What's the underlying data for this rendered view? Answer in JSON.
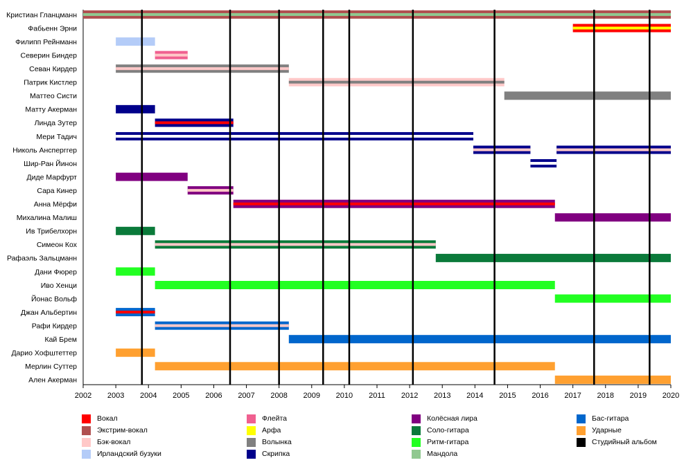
{
  "chart_data": {
    "type": "timeline",
    "x_ticks": [
      "2002",
      "2003",
      "2004",
      "2005",
      "2006",
      "2007",
      "2008",
      "2009",
      "2010",
      "2011",
      "2012",
      "2013",
      "2014",
      "2015",
      "2016",
      "2017",
      "2018",
      "2019",
      "2020"
    ],
    "xlim": [
      2002,
      2020
    ],
    "album_years": [
      2003.8,
      2006.5,
      2008.0,
      2009.35,
      2010.15,
      2012.1,
      2014.6,
      2017.65,
      2019.35
    ],
    "members": [
      {
        "name": "Кристиан Гланцманн",
        "bars": [
          {
            "start": 2002.0,
            "end": 2020.0,
            "main": "vocals_extreme",
            "stripe": "mandola"
          }
        ]
      },
      {
        "name": "Фабьенн Эрни",
        "bars": [
          {
            "start": 2017.0,
            "end": 2020.0,
            "main": "vocals",
            "stripe": "harp"
          }
        ]
      },
      {
        "name": "Филипп Рейнманн",
        "bars": [
          {
            "start": 2003.0,
            "end": 2004.2,
            "main": "bouzouki",
            "stripe": null
          }
        ]
      },
      {
        "name": "Северин Биндер",
        "bars": [
          {
            "start": 2004.2,
            "end": 2005.2,
            "main": "flute",
            "stripe": "backing"
          }
        ]
      },
      {
        "name": "Севан Кирдер",
        "bars": [
          {
            "start": 2003.0,
            "end": 2008.3,
            "main": "bagpipes",
            "stripe": "backing"
          }
        ]
      },
      {
        "name": "Патрик Кистлер",
        "bars": [
          {
            "start": 2008.3,
            "end": 2014.9,
            "main": "backing",
            "stripe": "bagpipes"
          }
        ]
      },
      {
        "name": "Маттео Систи",
        "bars": [
          {
            "start": 2014.9,
            "end": 2020.0,
            "main": "bagpipes",
            "stripe": null
          }
        ]
      },
      {
        "name": "Матту Акерман",
        "bars": [
          {
            "start": 2003.0,
            "end": 2004.2,
            "main": "violin",
            "stripe": null
          }
        ]
      },
      {
        "name": "Линда Зутер",
        "bars": [
          {
            "start": 2004.2,
            "end": 2006.6,
            "main": "violin",
            "stripe": "vocals"
          }
        ]
      },
      {
        "name": "Мери Тадич",
        "bars": [
          {
            "start": 2003.0,
            "end": 2013.95,
            "main": "violin",
            "stripe": "white"
          }
        ]
      },
      {
        "name": "Николь Ансперггер",
        "bars": [
          {
            "start": 2013.95,
            "end": 2015.7,
            "main": "violin",
            "stripe": "backing"
          },
          {
            "start": 2016.5,
            "end": 2020.0,
            "main": "violin",
            "stripe": "backing"
          }
        ]
      },
      {
        "name": "Шир-Ран Йинон",
        "bars": [
          {
            "start": 2015.7,
            "end": 2016.5,
            "main": "violin",
            "stripe": "white"
          }
        ]
      },
      {
        "name": "Диде Марфурт",
        "bars": [
          {
            "start": 2003.0,
            "end": 2005.2,
            "main": "hurdy",
            "stripe": null
          }
        ]
      },
      {
        "name": "Сара Кинер",
        "bars": [
          {
            "start": 2005.2,
            "end": 2006.6,
            "main": "hurdy",
            "stripe": "backing"
          }
        ]
      },
      {
        "name": "Анна Мёрфи",
        "bars": [
          {
            "start": 2006.6,
            "end": 2016.45,
            "main": "hurdy",
            "stripe": "vocals"
          }
        ]
      },
      {
        "name": "Михалина Малиш",
        "bars": [
          {
            "start": 2016.45,
            "end": 2020.0,
            "main": "hurdy",
            "stripe": null
          }
        ]
      },
      {
        "name": "Ив Трибелхорн",
        "bars": [
          {
            "start": 2003.0,
            "end": 2004.2,
            "main": "lead_guitar",
            "stripe": null
          }
        ]
      },
      {
        "name": "Симеон Кох",
        "bars": [
          {
            "start": 2004.2,
            "end": 2012.8,
            "main": "lead_guitar",
            "stripe": "backing"
          }
        ]
      },
      {
        "name": "Рафаэль Зальцманн",
        "bars": [
          {
            "start": 2012.8,
            "end": 2020.0,
            "main": "lead_guitar",
            "stripe": null
          }
        ]
      },
      {
        "name": "Дани Фюрер",
        "bars": [
          {
            "start": 2003.0,
            "end": 2004.2,
            "main": "rhythm_guitar",
            "stripe": null
          }
        ]
      },
      {
        "name": "Иво Хенци",
        "bars": [
          {
            "start": 2004.2,
            "end": 2016.45,
            "main": "rhythm_guitar",
            "stripe": null
          }
        ]
      },
      {
        "name": "Йонас Вольф",
        "bars": [
          {
            "start": 2016.45,
            "end": 2020.0,
            "main": "rhythm_guitar",
            "stripe": null
          }
        ]
      },
      {
        "name": "Джан Альбертин",
        "bars": [
          {
            "start": 2003.0,
            "end": 2004.2,
            "main": "bass",
            "stripe": "vocals"
          }
        ]
      },
      {
        "name": "Рафи Кирдер",
        "bars": [
          {
            "start": 2004.2,
            "end": 2008.3,
            "main": "bass",
            "stripe": "backing"
          }
        ]
      },
      {
        "name": "Кай Брем",
        "bars": [
          {
            "start": 2008.3,
            "end": 2020.0,
            "main": "bass",
            "stripe": null
          }
        ]
      },
      {
        "name": "Дарио Хофштеттер",
        "bars": [
          {
            "start": 2003.0,
            "end": 2004.2,
            "main": "drums",
            "stripe": null
          }
        ]
      },
      {
        "name": "Мерлин Суттер",
        "bars": [
          {
            "start": 2004.2,
            "end": 2016.45,
            "main": "drums",
            "stripe": null
          }
        ]
      },
      {
        "name": "Ален Акерман",
        "bars": [
          {
            "start": 2016.45,
            "end": 2020.0,
            "main": "drums",
            "stripe": null
          }
        ]
      }
    ],
    "legend": [
      {
        "key": "vocals",
        "label": "Вокал",
        "color": "#ff0000"
      },
      {
        "key": "vocals_extreme",
        "label": "Экстрим-вокал",
        "color": "#b05050"
      },
      {
        "key": "backing",
        "label": "Бэк-вокал",
        "color": "#ffc8c8"
      },
      {
        "key": "bouzouki",
        "label": "Ирландский бузуки",
        "color": "#b4ccf8"
      },
      {
        "key": "flute",
        "label": "Флейта",
        "color": "#f06090"
      },
      {
        "key": "harp",
        "label": "Арфа",
        "color": "#ffff00"
      },
      {
        "key": "bagpipes",
        "label": "Волынка",
        "color": "#808080"
      },
      {
        "key": "violin",
        "label": "Скрипка",
        "color": "#00008b"
      },
      {
        "key": "hurdy",
        "label": "Колёсная лира",
        "color": "#800080"
      },
      {
        "key": "lead_guitar",
        "label": "Соло-гитара",
        "color": "#0a7a3a"
      },
      {
        "key": "rhythm_guitar",
        "label": "Ритм-гитара",
        "color": "#22ff22"
      },
      {
        "key": "mandola",
        "label": "Мандола",
        "color": "#90c890"
      },
      {
        "key": "bass",
        "label": "Бас-гитара",
        "color": "#0066cc"
      },
      {
        "key": "drums",
        "label": "Ударные",
        "color": "#ffa030"
      },
      {
        "key": "album",
        "label": "Студийный альбом",
        "color": "#000000"
      }
    ],
    "colors": {
      "white": "#ffffff",
      "grid": "#000000"
    }
  }
}
